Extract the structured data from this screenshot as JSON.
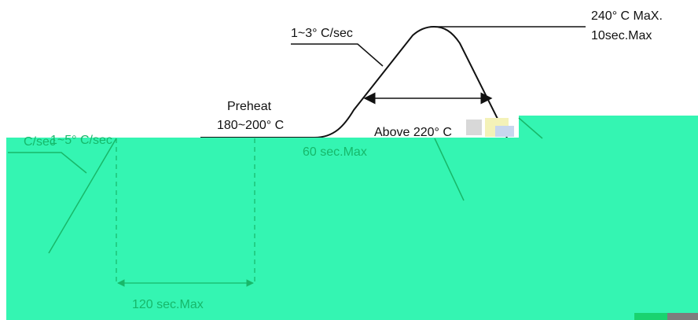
{
  "colors": {
    "background": "#ffffff",
    "line": "#111111",
    "overlay_fill": "#34f5b2",
    "overlay_line": "#18b869",
    "overlay_text": "#16b86a",
    "corner_block_green": "#19d36f",
    "corner_block_gray": "#7d7d7d"
  },
  "labels": {
    "peak": "240° C MaX.",
    "peak_time": "10sec.Max",
    "ramp_rate": "1~3° C/sec",
    "preheat": "Preheat",
    "preheat_range": "180~200° C",
    "above": "Above 220° C",
    "above_time": "60 sec.Max",
    "cooling_rate": "1~5° C/sec",
    "cool_word": "C/sec",
    "preheat_time": "120 sec.Max"
  }
}
